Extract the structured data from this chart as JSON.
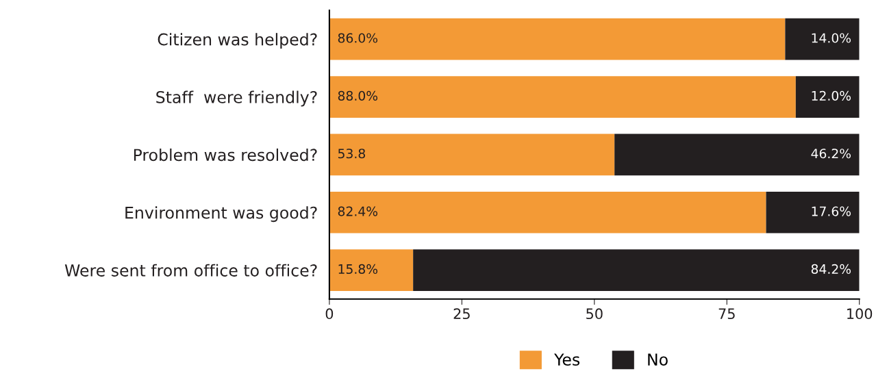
{
  "chart_data": {
    "type": "bar",
    "orientation": "horizontal",
    "stacked": true,
    "categories": [
      "Citizen was helped?",
      "Staff  were friendly?",
      "Problem was resolved?",
      "Environment was good?",
      "Were sent from office to office?"
    ],
    "series": [
      {
        "name": "Yes",
        "color": "#f39a36",
        "values": [
          86.0,
          88.0,
          53.8,
          82.4,
          15.8
        ],
        "value_labels": [
          "86.0%",
          "88.0%",
          "53.8",
          "82.4%",
          "15.8%"
        ]
      },
      {
        "name": "No",
        "color": "#231f20",
        "values": [
          14.0,
          12.0,
          46.2,
          17.6,
          84.2
        ],
        "value_labels": [
          "14.0%",
          "12.0%",
          "46.2%",
          "17.6%",
          "84.2%"
        ]
      }
    ],
    "xlim": [
      0,
      100
    ],
    "xticks": [
      0,
      25,
      50,
      75,
      100
    ],
    "grid": false,
    "legend": "bottom"
  }
}
